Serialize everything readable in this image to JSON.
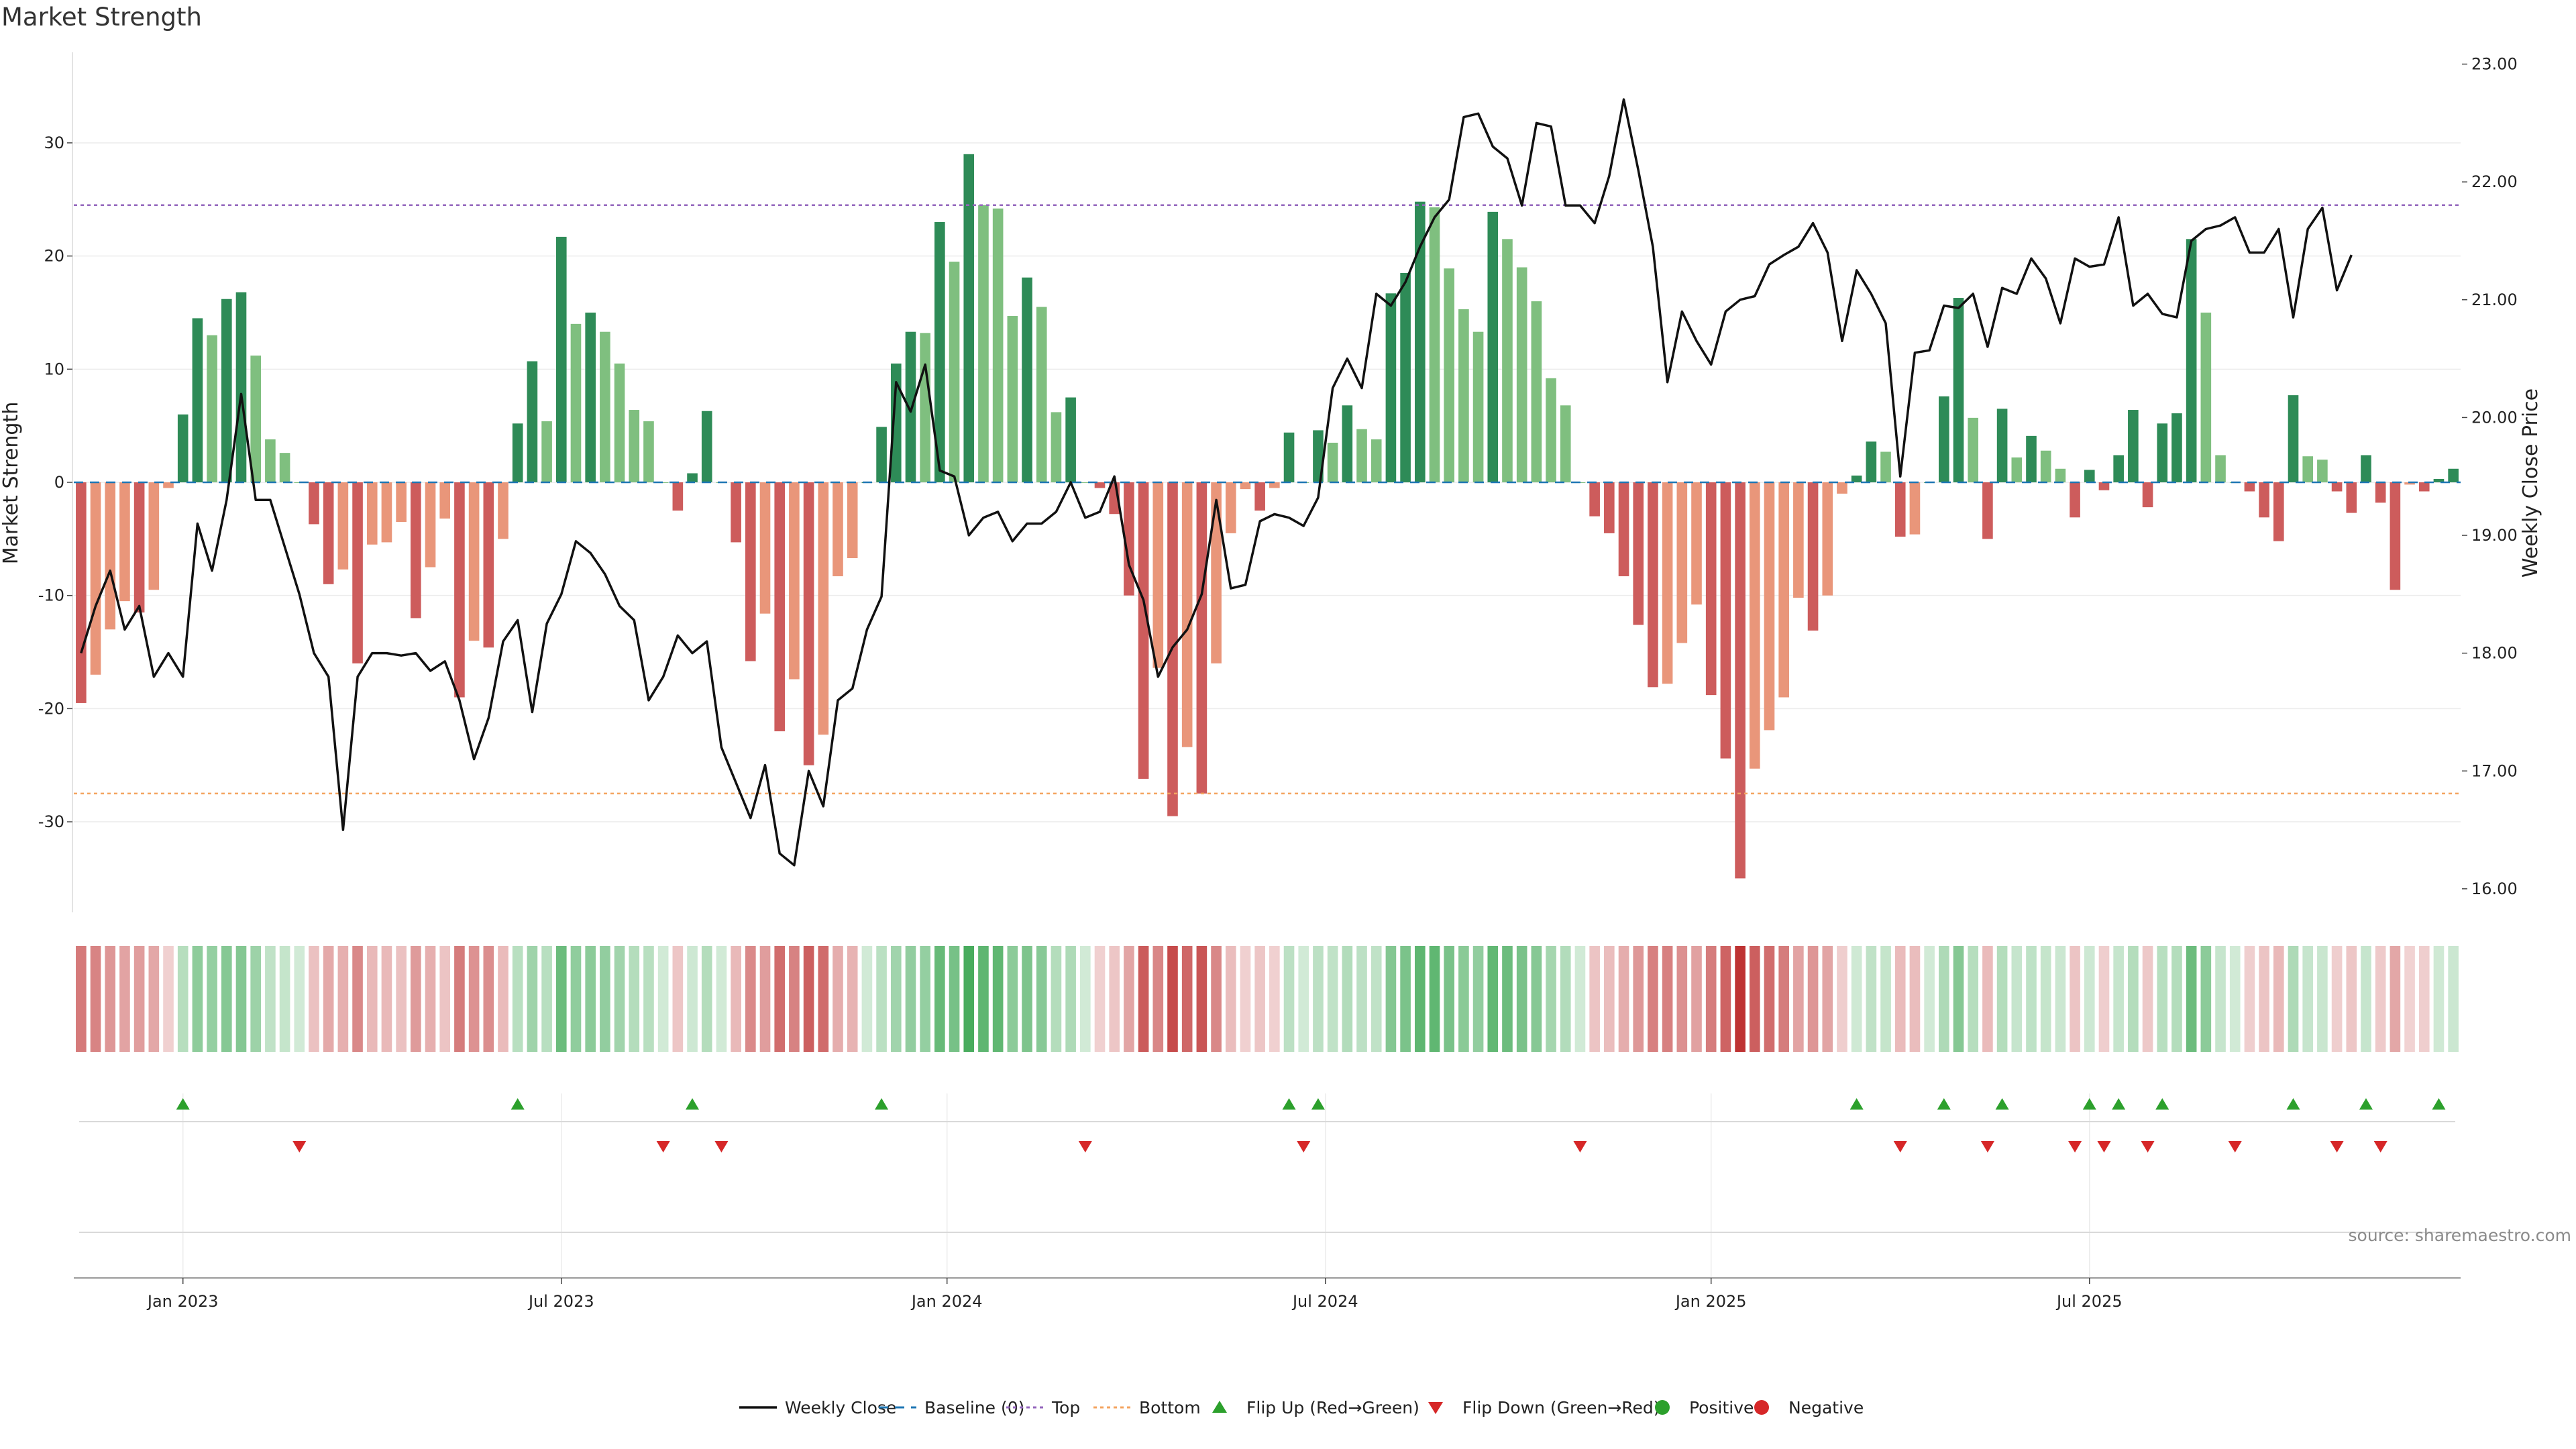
{
  "chart_data": {
    "type": "bar",
    "title": "Market Strength",
    "ylabel": "Market Strength",
    "y2label": "Weekly Close Price",
    "ylim": [
      -38,
      38
    ],
    "y2lim": [
      15.8,
      23.1
    ],
    "yticks": [
      30,
      20,
      10,
      0,
      -10,
      -20,
      -30
    ],
    "y2ticks": [
      "23.00",
      "22.00",
      "21.00",
      "20.00",
      "19.00",
      "18.00",
      "17.00",
      "16.00"
    ],
    "top_line": 24.5,
    "bottom_line": -27.5,
    "grid": true,
    "legend_position": "bottom-center",
    "source": "source: sharemaestro.com",
    "x_tick_labels": [
      {
        "label": "Jan 2023",
        "week": 7.5
      },
      {
        "label": "Jul 2023",
        "week": 33.5
      },
      {
        "label": "Jan 2024",
        "week": 60
      },
      {
        "label": "Jul 2024",
        "week": 86
      },
      {
        "label": "Jan 2025",
        "week": 112.5
      },
      {
        "label": "Jul 2025",
        "week": 138.5
      }
    ],
    "colors": {
      "strong_up": "#2e8b57",
      "weak_up": "#7fbf7f",
      "strong_down": "#cd5c5c",
      "weak_down": "#e9967a",
      "price_line": "#111111",
      "baseline": "#1f77b4",
      "top": "#9467bd",
      "bottom": "#f4a460",
      "flip_up": "#2ca02c",
      "flip_down": "#d62728",
      "positive": "#2ca02c",
      "negative": "#d62728"
    },
    "series": [
      {
        "name": "Market Strength",
        "values": [
          -19.5,
          -17,
          -13,
          -10.5,
          -11.5,
          -9.5,
          -0.5,
          6,
          14.5,
          13,
          16.2,
          16.8,
          11.2,
          3.8,
          2.6,
          0,
          -3.7,
          -9,
          -7.7,
          -16,
          -5.5,
          -5.3,
          -3.5,
          -12,
          -7.5,
          -3.2,
          -19,
          -14,
          -14.6,
          -5,
          5.2,
          10.7,
          5.4,
          21.7,
          14,
          15,
          13.3,
          10.5,
          6.4,
          5.4,
          0,
          -2.5,
          0.8,
          6.3,
          0,
          -5.3,
          -15.8,
          -11.6,
          -22,
          -17.4,
          -25,
          -22.3,
          -8.3,
          -6.7,
          0,
          4.9,
          10.5,
          13.3,
          13.2,
          23,
          19.5,
          29,
          24.5,
          24.2,
          14.7,
          18.1,
          15.5,
          6.2,
          7.5,
          0,
          -0.5,
          -2.8,
          -10,
          -26.2,
          -16.4,
          -29.5,
          -23.4,
          -27.5,
          -16,
          -4.5,
          -0.6,
          -2.5,
          -0.5,
          4.4,
          0,
          4.6,
          3.5,
          6.8,
          4.7,
          3.8,
          16.7,
          18.5,
          24.8,
          24.3,
          18.9,
          15.3,
          13.3,
          23.9,
          21.5,
          19,
          16,
          9.2,
          6.8,
          0,
          -3,
          -4.5,
          -8.3,
          -12.6,
          -18.1,
          -17.8,
          -14.2,
          -10.8,
          -18.8,
          -24.4,
          -35,
          -25.3,
          -21.9,
          -19,
          -10.2,
          -13.1,
          -10,
          -1,
          0.6,
          3.6,
          2.7,
          -4.8,
          -4.6,
          0,
          7.6,
          16.3,
          5.7,
          -5,
          6.5,
          2.2,
          4.1,
          2.8,
          1.2,
          -3.1,
          1.1,
          -0.7,
          2.4,
          6.4,
          -2.2,
          5.2,
          6.1,
          21.5,
          15,
          2.4,
          0,
          -0.8,
          -3.1,
          -5.2,
          7.7,
          2.3,
          2,
          -0.8,
          -2.7,
          2.4,
          -1.8,
          -9.5,
          -0.2,
          -0.8,
          0.3,
          1.2
        ]
      },
      {
        "name": "Weekly Close",
        "values": [
          18,
          18.4,
          18.7,
          18.2,
          18.4,
          17.8,
          18,
          17.8,
          19.1,
          18.7,
          19.3,
          20.2,
          19.3,
          19.3,
          18.9,
          18.5,
          18,
          17.8,
          16.5,
          17.8,
          18,
          18,
          17.98,
          18,
          17.85,
          17.93,
          17.6,
          17.1,
          17.45,
          18.1,
          18.28,
          17.5,
          18.25,
          18.5,
          18.95,
          18.85,
          18.67,
          18.4,
          18.28,
          17.6,
          17.8,
          18.15,
          18,
          18.1,
          17.2,
          16.9,
          16.6,
          17.05,
          16.3,
          16.2,
          17,
          16.7,
          17.6,
          17.7,
          18.2,
          18.48,
          20.3,
          20.05,
          20.45,
          19.55,
          19.5,
          19,
          19.15,
          19.2,
          18.95,
          19.1,
          19.1,
          19.2,
          19.45,
          19.15,
          19.2,
          19.5,
          18.75,
          18.45,
          17.8,
          18.05,
          18.2,
          18.5,
          19.3,
          18.55,
          18.58,
          19.12,
          19.18,
          19.15,
          19.08,
          19.32,
          20.25,
          20.5,
          20.25,
          21.05,
          20.95,
          21.15,
          21.45,
          21.7,
          21.85,
          22.55,
          22.58,
          22.3,
          22.2,
          21.8,
          22.5,
          22.47,
          21.8,
          21.8,
          21.65,
          22.05,
          22.7,
          22.1,
          21.45,
          20.3,
          20.9,
          20.65,
          20.45,
          20.9,
          21.0,
          21.03,
          21.3,
          21.38,
          21.45,
          21.65,
          21.4,
          20.65,
          21.25,
          21.05,
          20.8,
          19.5,
          20.55,
          20.57,
          20.95,
          20.93,
          21.05,
          20.6,
          21.1,
          21.05,
          21.35,
          21.18,
          20.8,
          21.35,
          21.28,
          21.3,
          21.7,
          20.95,
          21.05,
          20.88,
          20.85,
          21.5,
          21.6,
          21.63,
          21.7,
          21.4,
          21.4,
          21.6,
          20.85,
          21.6,
          21.78,
          21.08,
          21.38
        ]
      }
    ]
  },
  "legend": {
    "items": [
      {
        "label": "Weekly Close",
        "kind": "line",
        "color": "#111111"
      },
      {
        "label": "Baseline (0)",
        "kind": "dash",
        "color": "#1f77b4"
      },
      {
        "label": "Top",
        "kind": "dot",
        "color": "#9467bd"
      },
      {
        "label": "Bottom",
        "kind": "dot",
        "color": "#f4a460"
      },
      {
        "label": "Flip Up (Red→Green)",
        "kind": "up",
        "color": "#2ca02c"
      },
      {
        "label": "Flip Down (Green→Red)",
        "kind": "down",
        "color": "#d62728"
      },
      {
        "label": "Positive",
        "kind": "circle",
        "color": "#2ca02c"
      },
      {
        "label": "Negative",
        "kind": "circle",
        "color": "#d62728"
      }
    ]
  }
}
